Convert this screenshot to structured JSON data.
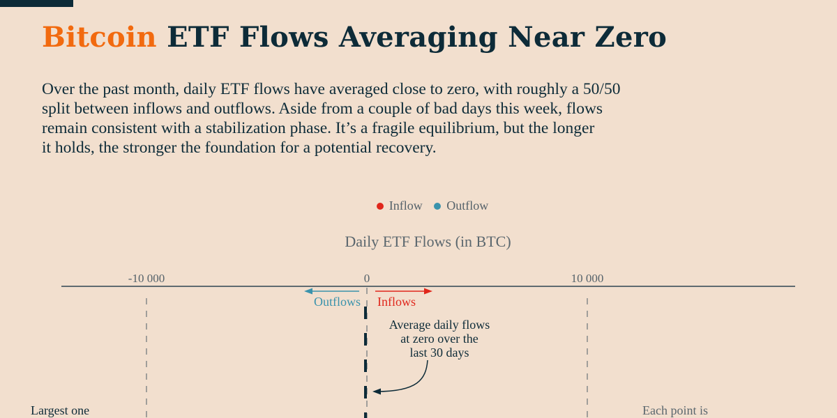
{
  "title": {
    "accent": "Bitcoin",
    "rest": " ETF Flows Averaging Near Zero"
  },
  "description": [
    "Over the past month, daily ETF flows have averaged close to zero, with roughly a 50/50",
    "split between inflows and outflows. Aside from a couple of bad days this week, flows",
    "remain consistent with a stabilization phase. It’s a fragile equilibrium, but the longer",
    "it holds, the stronger the foundation for a potential recovery."
  ],
  "colors": {
    "accent": "#f26a0f",
    "inflow": "#e0261b",
    "outflow": "#3b93ac",
    "dark": "#0d2b38"
  },
  "chart_data": {
    "type": "scatter",
    "title": "Daily ETF Flows (in BTC)",
    "legend": [
      {
        "name": "Inflow",
        "color": "#e0261b"
      },
      {
        "name": "Outflow",
        "color": "#3b93ac"
      }
    ],
    "legend_placement": "top-center",
    "xlim": [
      -10000,
      10000
    ],
    "ticks": [
      {
        "value": -10000,
        "label": "-10 000"
      },
      {
        "value": 0,
        "label": "0"
      },
      {
        "value": 10000,
        "label": "10 000"
      }
    ],
    "average_daily_flow": 0,
    "direction_labels": {
      "outflows": "Outflows",
      "inflows": "Inflows"
    },
    "annotations": {
      "average": [
        "Average daily flows",
        "at zero over the",
        "last 30 days"
      ],
      "largest": "Largest one",
      "each_point": "Each point is"
    }
  }
}
